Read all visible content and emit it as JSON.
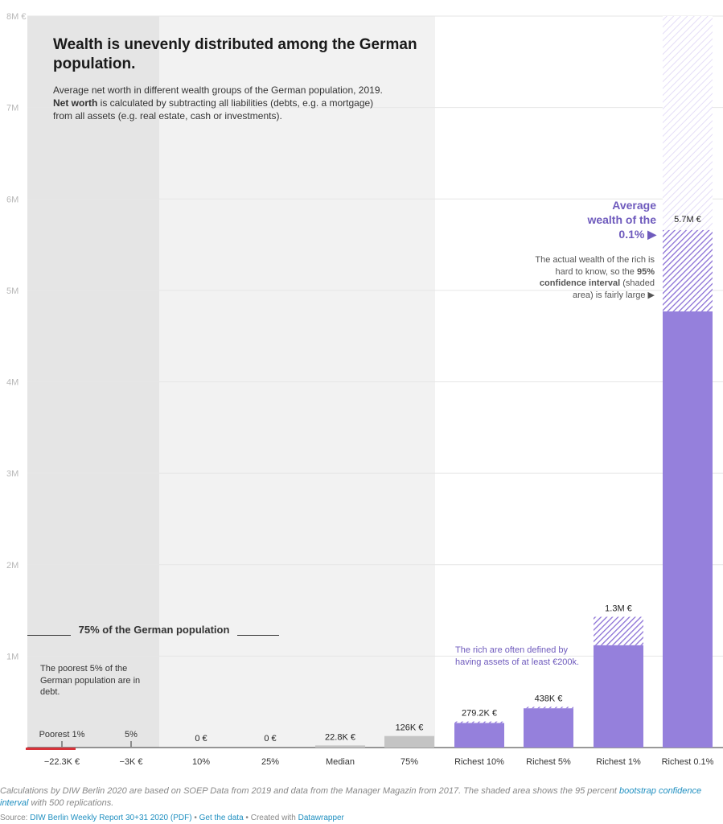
{
  "header": {
    "title": "Wealth is unevenly distributed among the German population.",
    "desc_1": "Average net worth in different wealth groups of the German population, 2019. ",
    "desc_bold": "Net worth",
    "desc_2": " is calculated by subtracting all liabilities (debts, e.g. a mortgage) from all assets (e.g. real estate, cash or investments)."
  },
  "annotations": {
    "population_label": "75% of the German population",
    "poorest_note": "The poorest 5% of the German population are in debt.",
    "rich_note": "The rich are often defined by having assets of at least €200k.",
    "avg_label": "Average wealth of the 0.1% ▶",
    "ci_note_1": "The actual wealth of the rich is hard to know, so the ",
    "ci_note_bold": "95% confidence interval",
    "ci_note_2": " (shaded area) is fairly large ▶",
    "poorest1_label": "Poorest 1%",
    "p5_label": "5%"
  },
  "footer": {
    "note_1": "Calculations by DIW Berlin 2020 are based on SOEP Data from 2019 and data from the Manager Magazin from 2017. The shaded area shows the 95 percent ",
    "note_link": "bootstrap confidence interval",
    "note_2": " with 500 replications.",
    "source_label": "Source: ",
    "source_link": "DIW Berlin Weekly Report 30+31 2020 (PDF)",
    "sep": " • ",
    "get_data": "Get the data",
    "created": "Created with ",
    "datawrapper": "Datawrapper"
  },
  "colors": {
    "rich": "#9580dc",
    "hatch": "#8a6fd6",
    "poor": "#d8333a",
    "gray_bar": "#c4c4c4",
    "band_dark": "#e5e5e5",
    "band_light": "#f2f2f2",
    "accent_text": "#6f5bbd"
  },
  "chart_data": {
    "type": "bar",
    "ylim": [
      0,
      8000000
    ],
    "yticks": [
      {
        "value": 1000000,
        "label": "1M"
      },
      {
        "value": 2000000,
        "label": "2M"
      },
      {
        "value": 3000000,
        "label": "3M"
      },
      {
        "value": 4000000,
        "label": "4M"
      },
      {
        "value": 5000000,
        "label": "5M"
      },
      {
        "value": 6000000,
        "label": "6M"
      },
      {
        "value": 7000000,
        "label": "7M"
      },
      {
        "value": 8000000,
        "label": "8M €"
      }
    ],
    "grid": true,
    "categories": [
      "−22.3K €",
      "−3K €",
      "10%",
      "25%",
      "Median",
      "75%",
      "Richest 10%",
      "Richest 5%",
      "Richest 1%",
      "Richest 0.1%"
    ],
    "values": [
      -22300,
      -3000,
      0,
      0,
      22800,
      126000,
      279200,
      438000,
      1340000,
      5660000
    ],
    "value_labels": [
      "",
      "",
      "0 €",
      "0 €",
      "22.8K €",
      "126K €",
      "279.2K €",
      "438K €",
      "1.3M €",
      "5.7M €"
    ],
    "group": [
      "poor",
      "poor",
      "gray",
      "gray",
      "gray",
      "gray",
      "rich",
      "rich",
      "rich",
      "rich"
    ],
    "ci": [
      null,
      null,
      null,
      null,
      null,
      null,
      [
        270000,
        285000
      ],
      [
        430000,
        445000
      ],
      [
        1120000,
        1430000
      ],
      [
        4770000,
        8000000
      ]
    ]
  }
}
